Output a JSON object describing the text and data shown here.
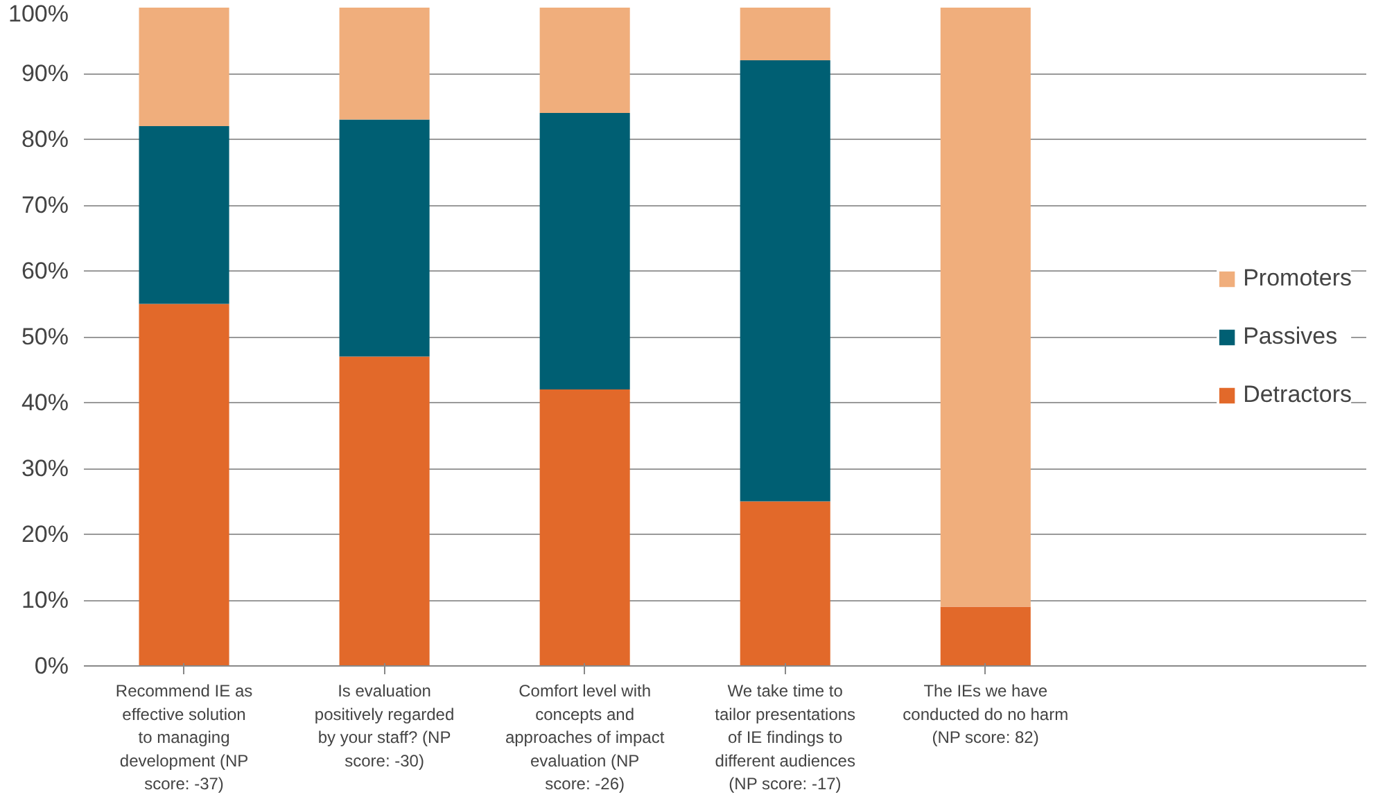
{
  "chart_data": {
    "type": "bar",
    "stacked": true,
    "categories": [
      "Recommend IE as effective solution to managing development (NP score: -37)",
      "Is evaluation positively regarded by your staff? (NP score: -30)",
      "Comfort level with concepts and approaches of impact evaluation (NP score: -26)",
      "We take time to tailor presentations of IE findings to different audiences (NP score: -17)",
      "The IEs we have conducted do no harm (NP score: 82)"
    ],
    "series": [
      {
        "name": "Detractors",
        "color": "#e2692a",
        "values": [
          55,
          47,
          42,
          25,
          9
        ]
      },
      {
        "name": "Passives",
        "color": "#005f73",
        "values": [
          27,
          36,
          42,
          67,
          0
        ]
      },
      {
        "name": "Promoters",
        "color": "#f0ae7c",
        "values": [
          18,
          17,
          16,
          8,
          91
        ]
      }
    ],
    "ylim": [
      0,
      100
    ],
    "yticks": [
      {
        "value": 0,
        "label": "0%"
      },
      {
        "value": 10,
        "label": "10%"
      },
      {
        "value": 20,
        "label": "20%"
      },
      {
        "value": 30,
        "label": "30%"
      },
      {
        "value": 40,
        "label": "40%"
      },
      {
        "value": 50,
        "label": "50%"
      },
      {
        "value": 60,
        "label": "60%"
      },
      {
        "value": 70,
        "label": "70%"
      },
      {
        "value": 80,
        "label": "80%"
      },
      {
        "value": 90,
        "label": "90%"
      },
      {
        "value": 100,
        "label": "100%"
      }
    ],
    "grid": "y",
    "legend": "right"
  }
}
